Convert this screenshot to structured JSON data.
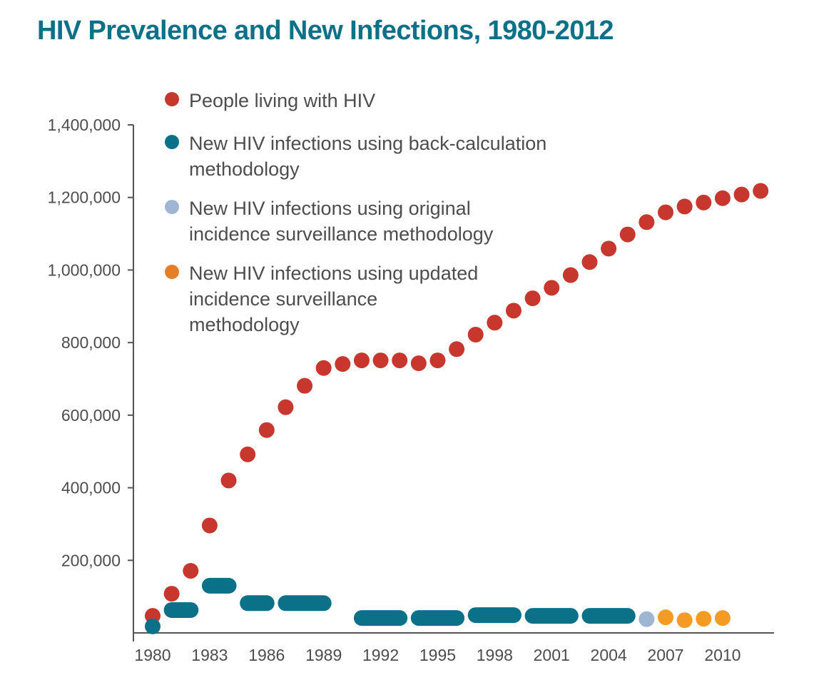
{
  "chart_data": {
    "type": "scatter",
    "title": "HIV Prevalence and New Infections, 1980-2012",
    "xlabel": "",
    "ylabel": "",
    "xlim": [
      1980,
      2012
    ],
    "ylim": [
      0,
      1400000
    ],
    "grid": false,
    "legend_position": "top-left",
    "x_ticks": [
      1980,
      1983,
      1986,
      1989,
      1992,
      1995,
      1998,
      2001,
      2004,
      2007,
      2010
    ],
    "x_tick_labels": [
      "1980",
      "1983",
      "1986",
      "1989",
      "1992",
      "1995",
      "1998",
      "2001",
      "2004",
      "2007",
      "2010"
    ],
    "y_ticks": [
      200000,
      400000,
      600000,
      800000,
      1000000,
      1200000,
      1400000
    ],
    "y_tick_labels": [
      "200,000",
      "400,000",
      "600,000",
      "800,000",
      "1,000,000",
      "1,200,000",
      "1,400,000"
    ],
    "series": [
      {
        "name": "People living with HIV",
        "legend_lines": [
          "People living with HIV"
        ],
        "color": "#c8372d",
        "marker": "dot",
        "points": [
          {
            "x": 1980,
            "y": 47000
          },
          {
            "x": 1981,
            "y": 108000
          },
          {
            "x": 1982,
            "y": 171000
          },
          {
            "x": 1983,
            "y": 296000
          },
          {
            "x": 1984,
            "y": 420000
          },
          {
            "x": 1985,
            "y": 492000
          },
          {
            "x": 1986,
            "y": 559000
          },
          {
            "x": 1987,
            "y": 622000
          },
          {
            "x": 1988,
            "y": 681000
          },
          {
            "x": 1989,
            "y": 730000
          },
          {
            "x": 1990,
            "y": 741000
          },
          {
            "x": 1991,
            "y": 751000
          },
          {
            "x": 1992,
            "y": 751000
          },
          {
            "x": 1993,
            "y": 751000
          },
          {
            "x": 1994,
            "y": 743000
          },
          {
            "x": 1995,
            "y": 751000
          },
          {
            "x": 1996,
            "y": 782000
          },
          {
            "x": 1997,
            "y": 822000
          },
          {
            "x": 1998,
            "y": 855000
          },
          {
            "x": 1999,
            "y": 888000
          },
          {
            "x": 2000,
            "y": 922000
          },
          {
            "x": 2001,
            "y": 951000
          },
          {
            "x": 2002,
            "y": 986000
          },
          {
            "x": 2003,
            "y": 1022000
          },
          {
            "x": 2004,
            "y": 1059000
          },
          {
            "x": 2005,
            "y": 1098000
          },
          {
            "x": 2006,
            "y": 1132000
          },
          {
            "x": 2007,
            "y": 1159000
          },
          {
            "x": 2008,
            "y": 1175000
          },
          {
            "x": 2009,
            "y": 1186000
          },
          {
            "x": 2010,
            "y": 1198000
          },
          {
            "x": 2011,
            "y": 1208000
          },
          {
            "x": 2012,
            "y": 1218000
          }
        ]
      },
      {
        "name": "New HIV infections using back-calculation methodology",
        "legend_lines": [
          "New HIV infections using back-calculation",
          "methodology"
        ],
        "color": "#0b7189",
        "marker": "range",
        "ranges": [
          {
            "x_start": 1980,
            "x_end": 1980,
            "y": 18000
          },
          {
            "x_start": 1981,
            "x_end": 1982,
            "y": 63000
          },
          {
            "x_start": 1983,
            "x_end": 1984,
            "y": 130000
          },
          {
            "x_start": 1985,
            "x_end": 1986,
            "y": 82000
          },
          {
            "x_start": 1987,
            "x_end": 1989,
            "y": 82000
          },
          {
            "x_start": 1991,
            "x_end": 1993,
            "y": 41000
          },
          {
            "x_start": 1994,
            "x_end": 1996,
            "y": 41000
          },
          {
            "x_start": 1997,
            "x_end": 1999,
            "y": 49000
          },
          {
            "x_start": 2000,
            "x_end": 2002,
            "y": 47000
          },
          {
            "x_start": 2003,
            "x_end": 2005,
            "y": 47000
          }
        ]
      },
      {
        "name": "New HIV infections using original incidence surveillance methodology",
        "legend_lines": [
          "New HIV infections using original",
          "incidence surveillance methodology"
        ],
        "color": "#9fb6d3",
        "marker": "dot",
        "points": [
          {
            "x": 2006,
            "y": 38000
          }
        ]
      },
      {
        "name": "New HIV infections using updated incidence surveillance methodology",
        "legend_lines": [
          "New HIV infections using updated",
          "incidence surveillance",
          "methodology"
        ],
        "legend_color": "#e57e25",
        "color": "#f39b23",
        "marker": "dot",
        "points": [
          {
            "x": 2007,
            "y": 43000
          },
          {
            "x": 2008,
            "y": 35000
          },
          {
            "x": 2009,
            "y": 39000
          },
          {
            "x": 2010,
            "y": 41000
          }
        ]
      }
    ]
  }
}
